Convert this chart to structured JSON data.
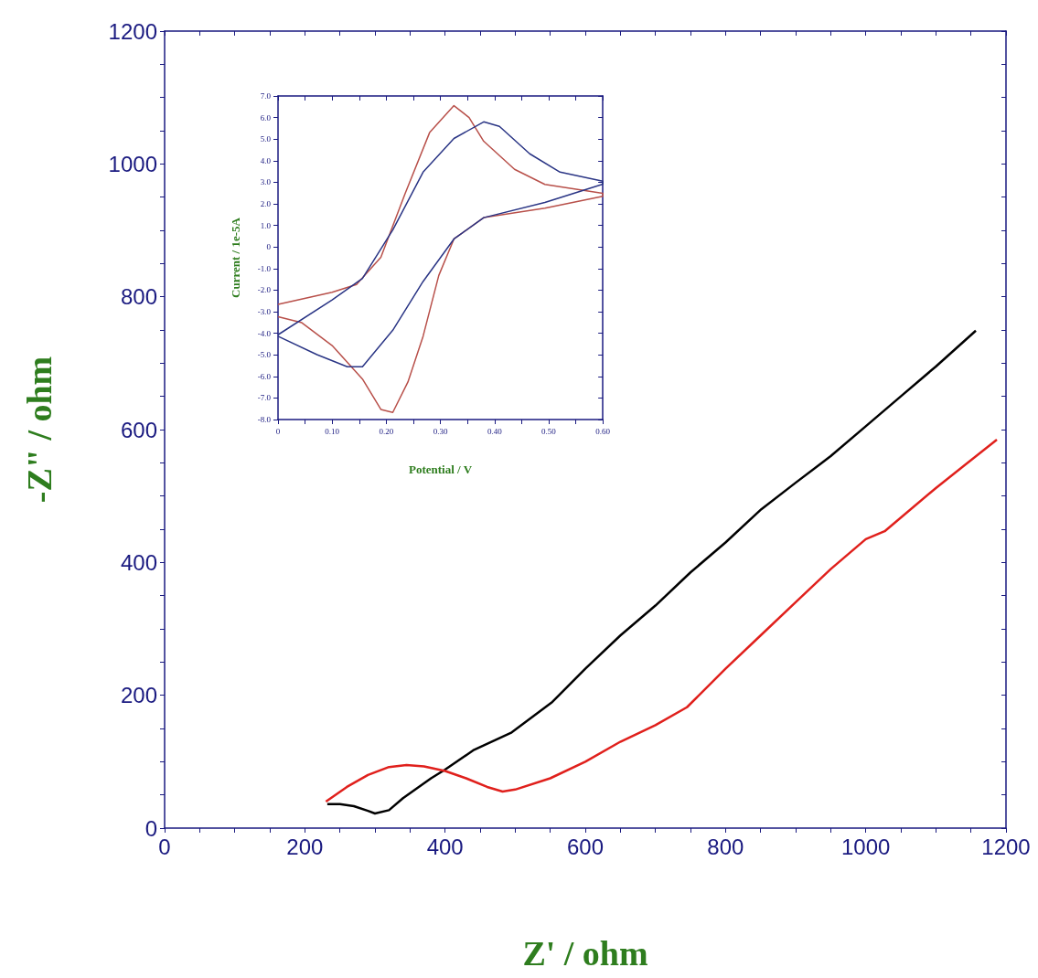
{
  "chart_data": [
    {
      "type": "line",
      "xlabel": "Z' / ohm",
      "ylabel": "-Z\" / ohm",
      "xlim": [
        0,
        1200
      ],
      "ylim": [
        0,
        1200
      ],
      "xticks": [
        0,
        {
          "value": 50,
          "label": null
        },
        {
          "value": 100,
          "label": null
        },
        {
          "value": 150,
          "label": null
        },
        200,
        {
          "value": 250,
          "label": null
        },
        {
          "value": 300,
          "label": null
        },
        {
          "value": 350,
          "label": null
        },
        400,
        {
          "value": 450,
          "label": null
        },
        {
          "value": 500,
          "label": null
        },
        {
          "value": 550,
          "label": null
        },
        600,
        {
          "value": 650,
          "label": null
        },
        {
          "value": 700,
          "label": null
        },
        {
          "value": 750,
          "label": null
        },
        800,
        {
          "value": 850,
          "label": null
        },
        {
          "value": 900,
          "label": null
        },
        {
          "value": 950,
          "label": null
        },
        1000,
        {
          "value": 1050,
          "label": null
        },
        {
          "value": 1100,
          "label": null
        },
        {
          "value": 1150,
          "label": null
        },
        1200
      ],
      "yticks": [
        0,
        {
          "value": 50,
          "label": null
        },
        {
          "value": 100,
          "label": null
        },
        {
          "value": 150,
          "label": null
        },
        200,
        {
          "value": 250,
          "label": null
        },
        {
          "value": 300,
          "label": null
        },
        {
          "value": 350,
          "label": null
        },
        400,
        {
          "value": 450,
          "label": null
        },
        {
          "value": 500,
          "label": null
        },
        {
          "value": 550,
          "label": null
        },
        600,
        {
          "value": 650,
          "label": null
        },
        {
          "value": 700,
          "label": null
        },
        {
          "value": 750,
          "label": null
        },
        800,
        {
          "value": 850,
          "label": null
        },
        {
          "value": 900,
          "label": null
        },
        {
          "value": 950,
          "label": null
        },
        1000,
        {
          "value": 1050,
          "label": null
        },
        {
          "value": 1100,
          "label": null
        },
        {
          "value": 1150,
          "label": null
        },
        1200
      ],
      "grid": false,
      "marker": "none",
      "line_style": "solid",
      "series": [
        {
          "color": "#000000",
          "x": [
            232,
            250,
            270,
            290,
            300,
            320,
            340,
            380,
            400,
            440,
            495,
            553,
            600,
            650,
            700,
            750,
            800,
            851,
            900,
            950,
            1000,
            1050,
            1100,
            1157
          ],
          "values": [
            36,
            36,
            33,
            26,
            22,
            27,
            45,
            75,
            88,
            117,
            144,
            190,
            240,
            290,
            335,
            385,
            430,
            480,
            520,
            560,
            605,
            650,
            695,
            749
          ]
        },
        {
          "color": "#e0201c",
          "x": [
            230,
            260,
            290,
            320,
            345,
            370,
            400,
            430,
            460,
            482,
            500,
            550,
            600,
            650,
            700,
            745,
            800,
            850,
            900,
            950,
            1000,
            1027,
            1100,
            1187
          ],
          "values": [
            40,
            62,
            80,
            92,
            95,
            93,
            86,
            75,
            62,
            55,
            58,
            75,
            100,
            130,
            155,
            182,
            240,
            290,
            340,
            390,
            435,
            447,
            512,
            585
          ]
        }
      ]
    },
    {
      "type": "line",
      "xlabel": "Potential / V",
      "ylabel": "Current / 1e-5A",
      "xlim": [
        0,
        0.6
      ],
      "ylim": [
        -8,
        7
      ],
      "xticks": [
        0,
        {
          "value": 0.05,
          "label": null
        },
        {
          "value": 0.1,
          "label": "0.10"
        },
        {
          "value": 0.15,
          "label": null
        },
        {
          "value": 0.2,
          "label": "0.20"
        },
        {
          "value": 0.25,
          "label": null
        },
        {
          "value": 0.3,
          "label": "0.30"
        },
        {
          "value": 0.35,
          "label": null
        },
        {
          "value": 0.4,
          "label": "0.40"
        },
        {
          "value": 0.45,
          "label": null
        },
        {
          "value": 0.5,
          "label": "0.50"
        },
        {
          "value": 0.55,
          "label": null
        },
        {
          "value": 0.6,
          "label": "0.60"
        }
      ],
      "yticks": [
        {
          "value": -8,
          "label": "-8.0"
        },
        {
          "value": -7,
          "label": "-7.0"
        },
        {
          "value": -6,
          "label": "-6.0"
        },
        {
          "value": -5,
          "label": "-5.0"
        },
        {
          "value": -4,
          "label": "-4.0"
        },
        {
          "value": -3,
          "label": "-3.0"
        },
        {
          "value": -2,
          "label": "-2.0"
        },
        {
          "value": -1,
          "label": "-1.0"
        },
        0,
        {
          "value": 1,
          "label": "1.0"
        },
        {
          "value": 2,
          "label": "2.0"
        },
        {
          "value": 3,
          "label": "3.0"
        },
        {
          "value": 4,
          "label": "4.0"
        },
        {
          "value": 5,
          "label": "5.0"
        },
        {
          "value": 6,
          "label": "6.0"
        },
        {
          "value": 7,
          "label": "7.0"
        }
      ],
      "grid": false,
      "marker": "none",
      "line_style": "solid",
      "series": [
        {
          "color": "#b8504a",
          "x": [
            0,
            0.1,
            0.145,
            0.19,
            0.235,
            0.28,
            0.325,
            0.353,
            0.38,
            0.437,
            0.493,
            0.6,
            0.6,
            0.493,
            0.38,
            0.325,
            0.297,
            0.268,
            0.24,
            0.212,
            0.19,
            0.156,
            0.1,
            0.044,
            0
          ],
          "values": [
            -2.66,
            -2.1,
            -1.74,
            -0.48,
            2.49,
            5.3,
            6.55,
            6.0,
            4.9,
            3.6,
            2.9,
            2.49,
            2.35,
            1.8,
            1.36,
            0.37,
            -1.32,
            -4.14,
            -6.26,
            -7.67,
            -7.53,
            -6.12,
            -4.57,
            -3.51,
            -3.23
          ]
        },
        {
          "color": "#2a3585",
          "x": [
            0,
            0.1,
            0.156,
            0.212,
            0.268,
            0.325,
            0.38,
            0.409,
            0.465,
            0.521,
            0.6,
            0.6,
            0.493,
            0.38,
            0.325,
            0.268,
            0.212,
            0.156,
            0.128,
            0.072,
            0
          ],
          "values": [
            -4.07,
            -2.45,
            -1.46,
            0.79,
            3.47,
            5.03,
            5.8,
            5.59,
            4.32,
            3.47,
            3.05,
            2.91,
            2.06,
            1.36,
            0.37,
            -1.6,
            -3.86,
            -5.55,
            -5.55,
            -4.99,
            -4.14
          ]
        }
      ]
    }
  ]
}
